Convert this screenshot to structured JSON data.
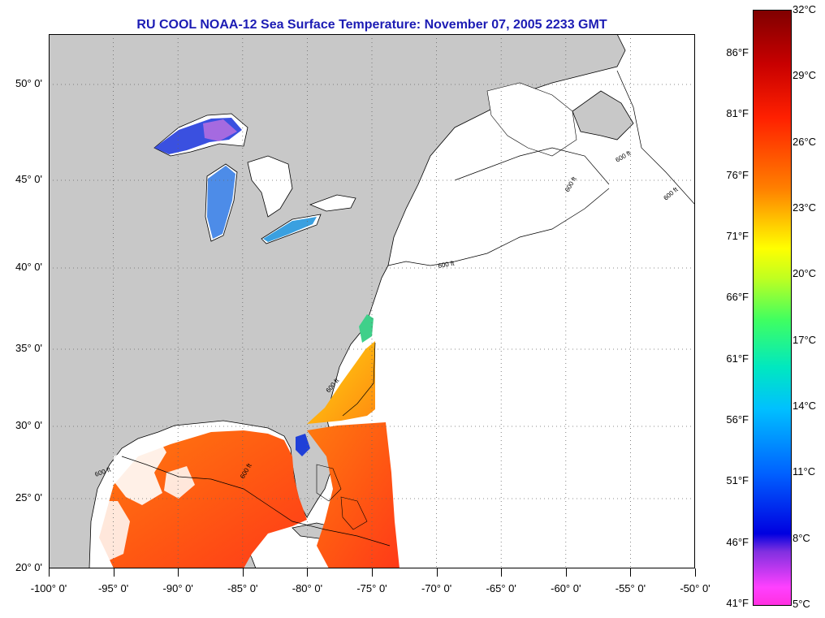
{
  "title": "RU COOL  NOAA-12  Sea Surface Temperature:  November 07, 2005 2233 GMT",
  "map": {
    "lon_ticks": [
      "-100° 0'",
      "-95° 0'",
      "-90° 0'",
      "-85° 0'",
      "-80° 0'",
      "-75° 0'",
      "-70° 0'",
      "-65° 0'",
      "-60° 0'",
      "-55° 0'",
      "-50° 0'"
    ],
    "lat_ticks": [
      "50° 0'",
      "45° 0'",
      "40° 0'",
      "35° 0'",
      "30° 0'",
      "25° 0'",
      "20° 0'"
    ],
    "isobath_labels": [
      "600 ft",
      "600 ft",
      "600 ft",
      "600 ft",
      "600 ft",
      "600 ft",
      "600 ft"
    ],
    "colors": {
      "land": "#c8c8c8",
      "ocean_nodata": "#ffffff",
      "coast": "#000000",
      "grid": "#666666"
    }
  },
  "colorbar": {
    "celsius": [
      "32°C",
      "29°C",
      "26°C",
      "23°C",
      "20°C",
      "17°C",
      "14°C",
      "11°C",
      "8°C",
      "5°C"
    ],
    "fahrenheit": [
      "86°F",
      "81°F",
      "76°F",
      "71°F",
      "66°F",
      "61°F",
      "56°F",
      "51°F",
      "46°F",
      "41°F"
    ]
  }
}
